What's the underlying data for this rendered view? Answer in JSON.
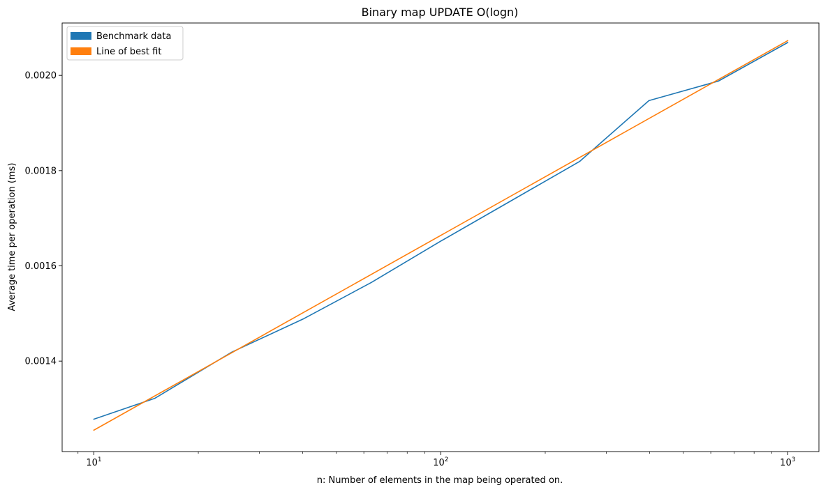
{
  "chart_data": {
    "type": "line",
    "title": "Binary map UPDATE O(logn)",
    "xlabel": "n: Number of elements in the map being operated on.",
    "ylabel": "Average time per operation (ms)",
    "x_scale": "log",
    "xlim": [
      8.1,
      1230
    ],
    "ylim": [
      0.00121,
      0.00211
    ],
    "x_ticks": [
      {
        "value": 10,
        "base": "10",
        "exp": "1"
      },
      {
        "value": 100,
        "base": "10",
        "exp": "2"
      },
      {
        "value": 1000,
        "base": "10",
        "exp": "3"
      }
    ],
    "x_minor_ticks": [
      9,
      20,
      30,
      40,
      50,
      60,
      70,
      80,
      90,
      200,
      300,
      400,
      500,
      600,
      700,
      800,
      900
    ],
    "y_ticks": [
      {
        "value": 0.0014,
        "label": "0.0014"
      },
      {
        "value": 0.0016,
        "label": "0.0016"
      },
      {
        "value": 0.0018,
        "label": "0.0018"
      },
      {
        "value": 0.002,
        "label": "0.0020"
      }
    ],
    "grid": false,
    "legend_position": "top-left",
    "series": [
      {
        "name": "Benchmark data",
        "color": "#1f77b4",
        "x": [
          10,
          15,
          25,
          40,
          63,
          100,
          158,
          251,
          398,
          631,
          1000
        ],
        "y": [
          0.001278,
          0.001322,
          0.001419,
          0.001488,
          0.001565,
          0.001652,
          0.001735,
          0.001819,
          0.001947,
          0.001988,
          0.002069
        ]
      },
      {
        "name": "Line of best fit",
        "color": "#ff7f0e",
        "x": [
          10,
          1000
        ],
        "y": [
          0.001255,
          0.002073
        ]
      }
    ]
  }
}
